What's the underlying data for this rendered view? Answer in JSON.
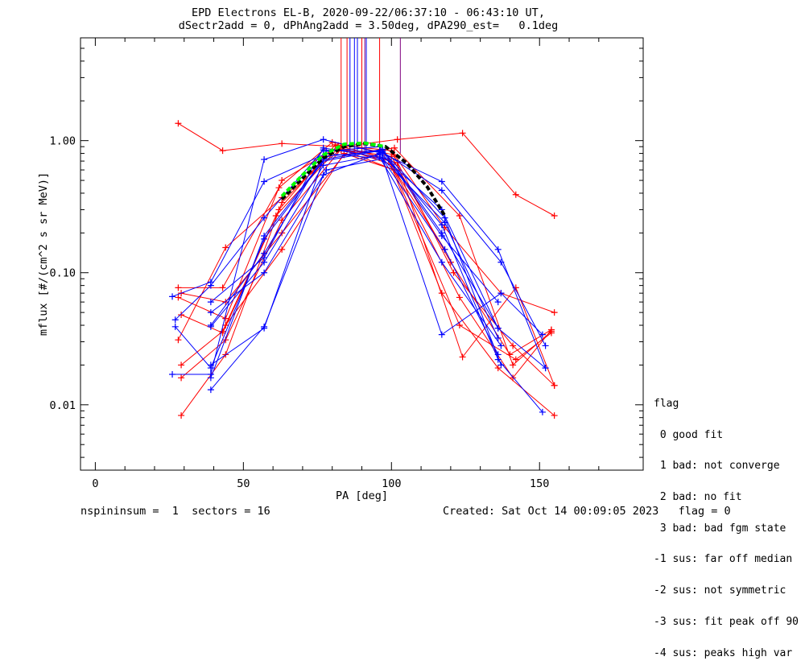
{
  "header": {
    "title_line1": "EPD Electrons EL-B, 2020-09-22/06:37:10 - 06:43:10 UT,",
    "title_line2": "dSectr2add = 0, dPhAng2add = 3.50deg, dPA290_est=   0.1deg"
  },
  "footer": {
    "left": "nspininsum =  1  sectors = 16",
    "right": "Created: Sat Oct 14 00:09:05 2023   flag = 0"
  },
  "legend": {
    "title": "flag",
    "items": [
      " 0 good fit",
      " 1 bad: not converge",
      " 2 bad: no fit",
      " 3 bad: bad fgm state",
      "-1 sus: far off median",
      "-2 sus: not symmetric",
      "-3 sus: fit peak off 90",
      "-4 sus: peaks high var"
    ]
  },
  "chart_data": {
    "type": "line",
    "xlabel": "PA [deg]",
    "ylabel": "mflux [#/(cm^2 s sr MeV)]",
    "xlim": [
      -5,
      185
    ],
    "ylim": [
      0.0032,
      6.0
    ],
    "yscale": "log",
    "xticks": [
      0,
      50,
      100,
      150
    ],
    "yticks": [
      0.01,
      0.1,
      1.0
    ],
    "ytick_labels": [
      "0.01",
      "0.10",
      "1.00"
    ],
    "colors": {
      "red": "#ff0000",
      "blue": "#0000ff",
      "black": "#000000",
      "green": "#00ff00",
      "purple": "#7f007f"
    },
    "series": [
      {
        "color": "red",
        "x": [
          28,
          43,
          63,
          83,
          102,
          124,
          142,
          155
        ],
        "y": [
          1.35,
          0.84,
          0.95,
          0.9,
          1.02,
          1.14,
          0.39,
          0.27
        ]
      },
      {
        "color": "red",
        "x": [
          29,
          44,
          63,
          82,
          99,
          117,
          136,
          155
        ],
        "y": [
          0.0083,
          0.024,
          0.34,
          0.92,
          0.72,
          0.07,
          0.019,
          0.0083
        ]
      },
      {
        "color": "red",
        "x": [
          28,
          43,
          62,
          80,
          101,
          118,
          137,
          155
        ],
        "y": [
          0.077,
          0.077,
          0.44,
          0.97,
          0.78,
          0.22,
          0.07,
          0.05
        ]
      },
      {
        "color": "red",
        "x": [
          29,
          44,
          63,
          83,
          100,
          120,
          140,
          154
        ],
        "y": [
          0.016,
          0.031,
          0.25,
          0.86,
          0.76,
          0.12,
          0.024,
          0.037
        ]
      },
      {
        "color": "red",
        "x": [
          29,
          43,
          62,
          81,
          100,
          121,
          141,
          155
        ],
        "y": [
          0.048,
          0.035,
          0.3,
          0.93,
          0.84,
          0.1,
          0.028,
          0.014
        ]
      },
      {
        "color": "red",
        "x": [
          28,
          44,
          63,
          82,
          100,
          123,
          142,
          154
        ],
        "y": [
          0.065,
          0.045,
          0.5,
          0.9,
          0.66,
          0.04,
          0.022,
          0.035
        ]
      },
      {
        "color": "red",
        "x": [
          29,
          43,
          61,
          82,
          101,
          123,
          141,
          154
        ],
        "y": [
          0.02,
          0.036,
          0.27,
          0.88,
          0.6,
          0.065,
          0.016,
          0.037
        ]
      },
      {
        "color": "red",
        "x": [
          28,
          44,
          63,
          83,
          102,
          124,
          142,
          155
        ],
        "y": [
          0.031,
          0.155,
          0.37,
          0.86,
          0.68,
          0.023,
          0.077,
          0.014
        ]
      },
      {
        "color": "red",
        "x": [
          29,
          44,
          63,
          84,
          101,
          123,
          141,
          154
        ],
        "y": [
          0.07,
          0.06,
          0.2,
          0.78,
          0.88,
          0.27,
          0.02,
          0.036
        ]
      },
      {
        "color": "red",
        "x": [
          44,
          63,
          84,
          101,
          118
        ],
        "y": [
          0.04,
          0.15,
          0.8,
          0.6,
          0.15
        ]
      },
      {
        "color": "blue",
        "x": [
          26,
          39,
          57,
          77,
          97,
          117,
          136,
          152
        ],
        "y": [
          0.017,
          0.017,
          0.72,
          1.02,
          0.8,
          0.49,
          0.15,
          0.019
        ]
      },
      {
        "color": "blue",
        "x": [
          26,
          39,
          57,
          78,
          97,
          117,
          137,
          151
        ],
        "y": [
          0.066,
          0.085,
          0.49,
          0.8,
          0.73,
          0.034,
          0.07,
          0.034
        ]
      },
      {
        "color": "blue",
        "x": [
          27,
          39,
          57,
          77,
          97,
          117,
          137,
          152
        ],
        "y": [
          0.044,
          0.08,
          0.26,
          0.85,
          0.82,
          0.42,
          0.12,
          0.028
        ]
      },
      {
        "color": "blue",
        "x": [
          27,
          39,
          57,
          77,
          96,
          117,
          136,
          151
        ],
        "y": [
          0.039,
          0.019,
          0.18,
          0.7,
          0.84,
          0.23,
          0.022,
          0.0088
        ]
      },
      {
        "color": "blue",
        "x": [
          39,
          57,
          77,
          96,
          117,
          136,
          152
        ],
        "y": [
          0.013,
          0.039,
          0.55,
          0.8,
          0.3,
          0.038,
          0.019
        ]
      },
      {
        "color": "blue",
        "x": [
          39,
          57,
          78,
          96,
          117,
          136
        ],
        "y": [
          0.04,
          0.14,
          0.83,
          0.9,
          0.19,
          0.06
        ]
      },
      {
        "color": "blue",
        "x": [
          39,
          57,
          78,
          97,
          118,
          136
        ],
        "y": [
          0.05,
          0.1,
          0.6,
          0.73,
          0.24,
          0.032
        ]
      },
      {
        "color": "blue",
        "x": [
          39,
          57,
          77,
          96,
          118,
          136
        ],
        "y": [
          0.039,
          0.12,
          0.65,
          0.78,
          0.15,
          0.024
        ]
      },
      {
        "color": "blue",
        "x": [
          39,
          57,
          77,
          97,
          117,
          136
        ],
        "y": [
          0.02,
          0.038,
          0.72,
          0.86,
          0.2,
          0.038
        ]
      },
      {
        "color": "blue",
        "x": [
          39,
          57,
          78,
          97,
          118,
          137
        ],
        "y": [
          0.016,
          0.19,
          0.76,
          0.84,
          0.26,
          0.02
        ]
      },
      {
        "color": "blue",
        "x": [
          39,
          57,
          77,
          96,
          117,
          137
        ],
        "y": [
          0.06,
          0.13,
          0.88,
          0.75,
          0.12,
          0.028
        ]
      },
      {
        "color": "black",
        "dashed": true,
        "x": [
          63,
          70,
          77,
          84,
          91,
          98,
          105,
          112,
          118
        ],
        "y": [
          0.36,
          0.52,
          0.74,
          0.9,
          0.95,
          0.9,
          0.68,
          0.45,
          0.27
        ]
      },
      {
        "color": "green",
        "dashed": true,
        "x": [
          63,
          70,
          77,
          84,
          91,
          98
        ],
        "y": [
          0.38,
          0.55,
          0.78,
          0.94,
          0.96,
          0.9
        ]
      }
    ],
    "vlines": [
      {
        "color": "red",
        "x": 83
      },
      {
        "color": "red",
        "x": 85
      },
      {
        "color": "blue",
        "x": 86
      },
      {
        "color": "blue",
        "x": 87.5
      },
      {
        "color": "blue",
        "x": 88.5
      },
      {
        "color": "red",
        "x": 90
      },
      {
        "color": "purple",
        "x": 91
      },
      {
        "color": "blue",
        "x": 91.5
      },
      {
        "color": "red",
        "x": 96
      },
      {
        "color": "purple",
        "x": 103
      }
    ]
  }
}
